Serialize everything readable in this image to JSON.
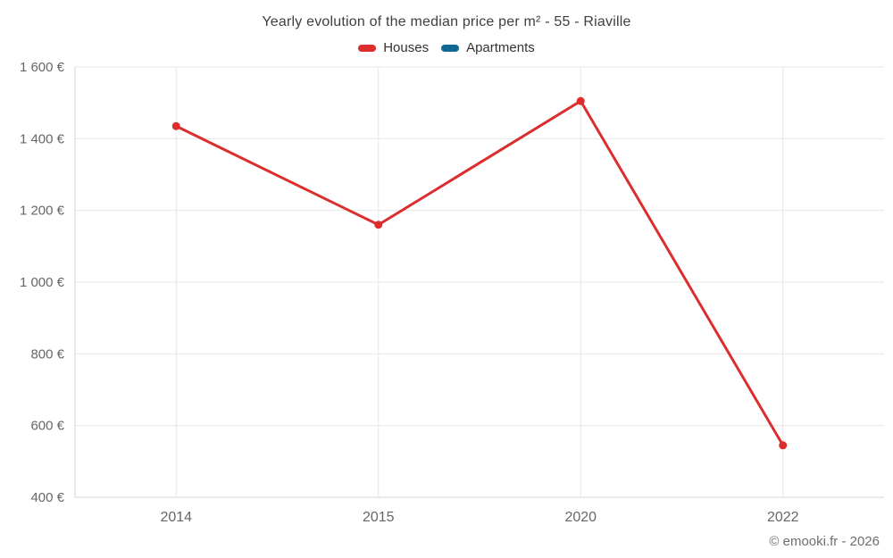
{
  "chart": {
    "title": "Yearly evolution of the median price per m² - 55 - Riaville"
  },
  "legend": {
    "items": [
      {
        "label": "Houses",
        "color": "#dc2e2e"
      },
      {
        "label": "Apartments",
        "color": "#106994"
      }
    ]
  },
  "footer": {
    "credit": "© emooki.fr - 2026"
  },
  "chart_data": {
    "type": "line",
    "title": "Yearly evolution of the median price per m² - 55 - Riaville",
    "categories": [
      "2014",
      "2015",
      "2020",
      "2022"
    ],
    "series": [
      {
        "name": "Houses",
        "color": "#dc2e2e",
        "values": [
          1435,
          1160,
          1505,
          545
        ]
      },
      {
        "name": "Apartments",
        "color": "#106994",
        "values": [
          null,
          null,
          null,
          null
        ]
      }
    ],
    "xlabel": "",
    "ylabel": "",
    "ylim": [
      400,
      1600
    ],
    "y_ticks": [
      {
        "value": 400,
        "label": "400 €"
      },
      {
        "value": 600,
        "label": "600 €"
      },
      {
        "value": 800,
        "label": "800 €"
      },
      {
        "value": 1000,
        "label": "1 000 €"
      },
      {
        "value": 1200,
        "label": "1 200 €"
      },
      {
        "value": 1400,
        "label": "1 400 €"
      },
      {
        "value": 1600,
        "label": "1 600 €"
      }
    ],
    "grid": true,
    "legend_position": "top",
    "colors": {
      "grid": "#e7e7e7",
      "axis": "#d4d4d4",
      "tick_text": "#666666"
    }
  }
}
